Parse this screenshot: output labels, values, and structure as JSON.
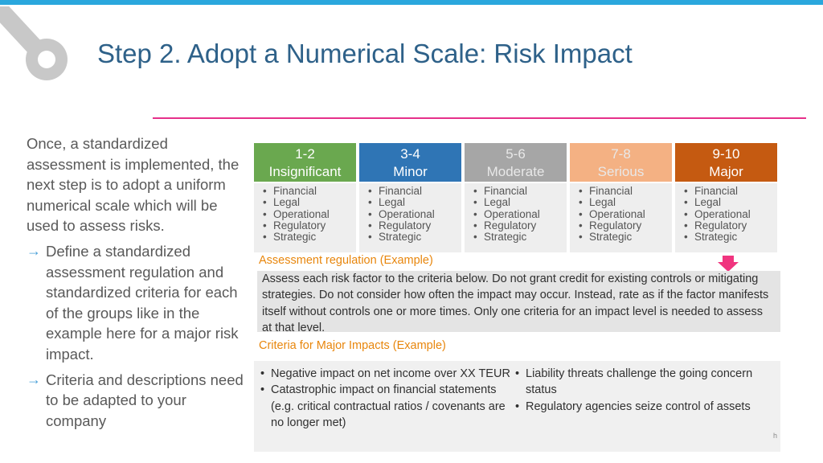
{
  "title": "Step 2. Adopt a Numerical Scale: Risk Impact",
  "left_panel": {
    "intro": "Once, a standardized assessment is implemented, the next step is to adopt a uniform numerical scale which will be used to assess risks.",
    "points": [
      "Define a standardized assessment regulation and standardized criteria for each of the groups like in the example here for a major risk impact.",
      "Criteria and descriptions need to be adapted to your company"
    ]
  },
  "arrow_glyph": "→",
  "colors": {
    "topbar": "#2aa7dd",
    "title": "#2e6189",
    "rule": "#e6308a",
    "insignificant": "#6aa84f",
    "minor": "#2f75b5",
    "moderate": "#a6a6a6",
    "serious": "#f4b183",
    "major": "#c55a11",
    "section_label": "#e8860c",
    "pink_arrow": "#f0357f"
  },
  "levels": [
    {
      "range": "1-2",
      "name": "Insignificant",
      "items": [
        "Financial",
        "Legal",
        "Operational",
        "Regulatory",
        "Strategic"
      ]
    },
    {
      "range": "3-4",
      "name": "Minor",
      "items": [
        "Financial",
        "Legal",
        "Operational",
        "Regulatory",
        "Strategic"
      ]
    },
    {
      "range": "5-6",
      "name": "Moderate",
      "items": [
        "Financial",
        "Legal",
        "Operational",
        "Regulatory",
        "Strategic"
      ]
    },
    {
      "range": "7-8",
      "name": "Serious",
      "items": [
        "Financial",
        "Legal",
        "Operational",
        "Regulatory",
        "Strategic"
      ]
    },
    {
      "range": "9-10",
      "name": "Major",
      "items": [
        "Financial",
        "Legal",
        "Operational",
        "Regulatory",
        "Strategic"
      ]
    }
  ],
  "assessment": {
    "label": "Assessment regulation (Example)",
    "text": "Assess each risk factor to the criteria below. Do not grant credit for existing controls or mitigating strategies. Do not consider how often the impact may occur. Instead, rate as if the factor manifests itself without controls one or more times. Only one criteria for an impact level is needed to assess at that level."
  },
  "criteria": {
    "label": "Criteria for Major Impacts (Example)",
    "left": [
      "Negative impact on net income over XX TEUR",
      "Catastrophic impact on financial statements (e.g. critical contractual ratios / covenants are no longer met)"
    ],
    "right": [
      "Liability threats challenge the going concern status",
      "Regulatory agencies seize control of assets"
    ]
  },
  "page_marker": "h"
}
